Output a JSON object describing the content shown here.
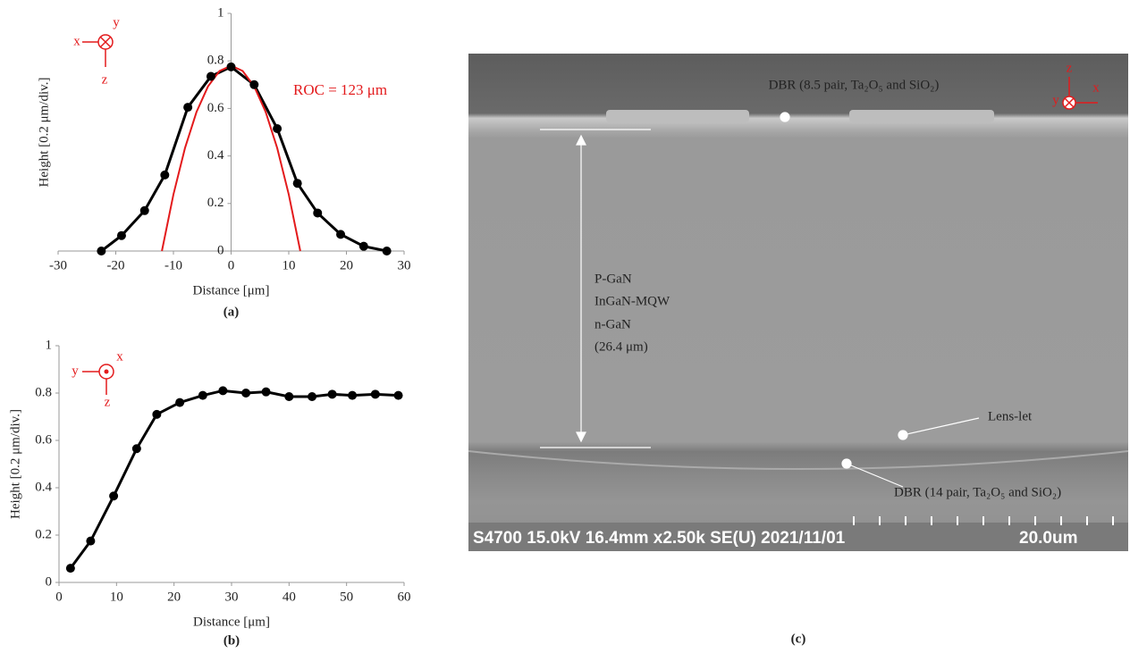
{
  "chart_data": [
    {
      "type": "line",
      "ylabel": "Height [0.2 μm/div.]",
      "xlabel": "Distance [μm]",
      "caption": "(a)",
      "xlim": [
        -30,
        30
      ],
      "xticks": [
        -30,
        -20,
        -10,
        0,
        10,
        20,
        30
      ],
      "ylim": [
        0,
        1
      ],
      "yticks": [
        0,
        0.2,
        0.4,
        0.6,
        0.8,
        1
      ],
      "annotation": "ROC = 123 μm",
      "axis_symbols": [
        "x",
        "y",
        "z"
      ],
      "series": [
        {
          "color": "#000000",
          "markers": true,
          "x": [
            -22.5,
            -19,
            -15,
            -11.5,
            -7.5,
            -3.5,
            0,
            4,
            8,
            11.5,
            15,
            19,
            23,
            27
          ],
          "values": [
            0.0,
            0.065,
            0.17,
            0.32,
            0.605,
            0.735,
            0.775,
            0.7,
            0.515,
            0.285,
            0.16,
            0.07,
            0.02,
            0.0
          ]
        },
        {
          "color": "#e31a1c",
          "markers": false,
          "x": [
            -12,
            -10,
            -8,
            -6,
            -4,
            -2,
            0,
            2,
            4,
            6,
            8,
            10,
            12
          ],
          "values": [
            0,
            0.238,
            0.433,
            0.585,
            0.693,
            0.758,
            0.78,
            0.758,
            0.693,
            0.585,
            0.433,
            0.238,
            0
          ]
        }
      ]
    },
    {
      "type": "line",
      "ylabel": "Height [0.2 μm/div.]",
      "xlabel": "Distance [μm]",
      "caption": "(b)",
      "xlim": [
        0,
        60
      ],
      "xticks": [
        0,
        10,
        20,
        30,
        40,
        50,
        60
      ],
      "ylim": [
        0,
        1
      ],
      "yticks": [
        0,
        0.2,
        0.4,
        0.6,
        0.8,
        1
      ],
      "axis_symbols": [
        "y",
        "x",
        "z"
      ],
      "series": [
        {
          "color": "#000000",
          "markers": true,
          "x": [
            2,
            5.5,
            9.5,
            13.5,
            17,
            21,
            25,
            28.5,
            32.5,
            36,
            40,
            44,
            47.5,
            51,
            55,
            59
          ],
          "values": [
            0.06,
            0.175,
            0.365,
            0.565,
            0.71,
            0.76,
            0.79,
            0.81,
            0.8,
            0.805,
            0.785,
            0.785,
            0.795,
            0.79,
            0.795,
            0.79
          ]
        }
      ]
    }
  ],
  "image_c": {
    "top_label": "DBR (8.5 pair, Ta₂O₅ and SiO₂)",
    "layers": [
      "P-GaN",
      "InGaN-MQW",
      "n-GaN",
      "(26.4 μm)"
    ],
    "lens_label": "Lens-let",
    "bottom_label": "DBR (14 pair, Ta₂O₅ and SiO₂)",
    "info": "S4700 15.0kV 16.4mm x2.50k SE(U) 2021/11/01",
    "scale": "20.0um",
    "axis_symbols": [
      "z",
      "y",
      "x"
    ],
    "caption": "(c)"
  }
}
